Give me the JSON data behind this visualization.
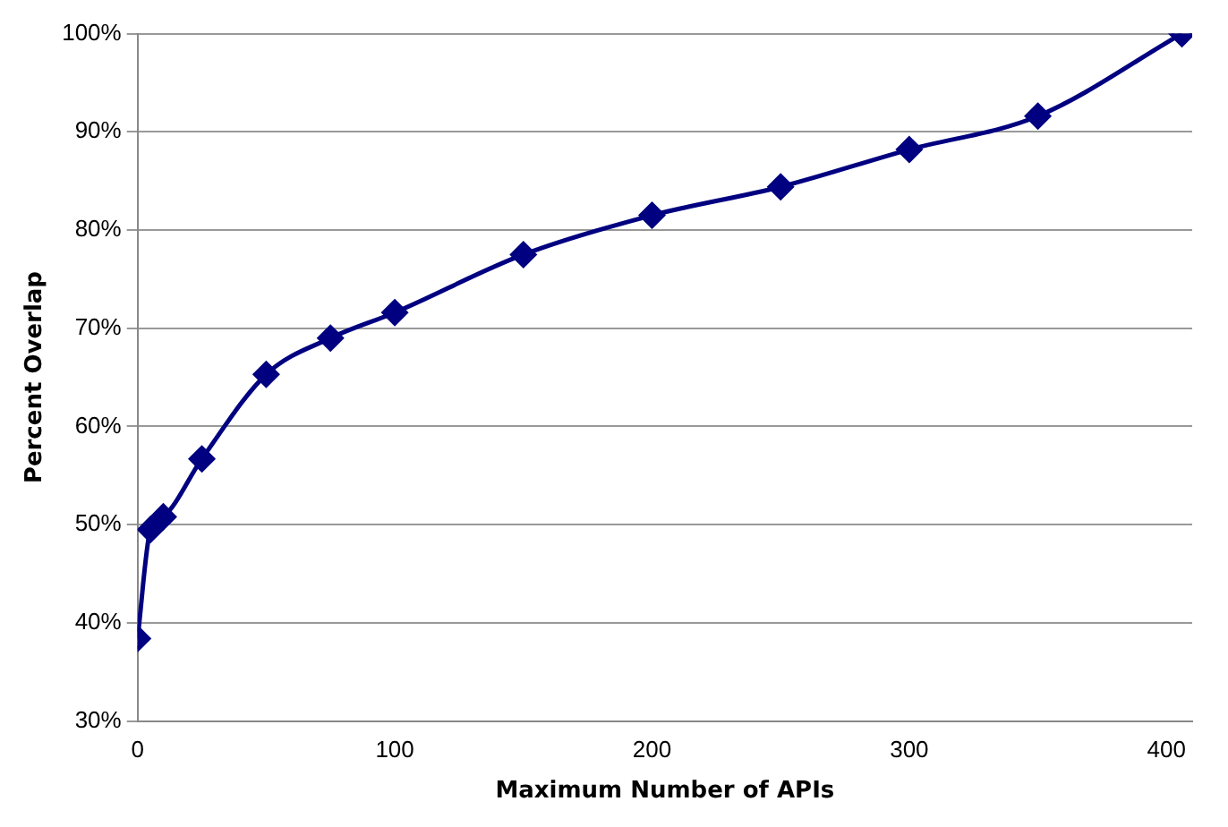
{
  "chart_data": {
    "type": "line",
    "xlabel": "Maximum Number of APIs",
    "ylabel": "Percent Overlap",
    "x": [
      0,
      5,
      10,
      25,
      50,
      75,
      100,
      150,
      200,
      250,
      300,
      350,
      406
    ],
    "series": [
      {
        "color": "#000080",
        "values": [
          38.4,
          49.5,
          50.8,
          56.7,
          65.3,
          69.0,
          71.6,
          77.5,
          81.5,
          84.4,
          88.2,
          91.6,
          100
        ]
      }
    ],
    "xlim": [
      0,
      410
    ],
    "xticks": [
      0,
      100,
      200,
      300,
      400
    ],
    "ylim": [
      30,
      100
    ],
    "yticks": [
      {
        "value": 30,
        "label": "30%"
      },
      {
        "value": 40,
        "label": "40%"
      },
      {
        "value": 50,
        "label": "50%"
      },
      {
        "value": 60,
        "label": "60%"
      },
      {
        "value": 70,
        "label": "70%"
      },
      {
        "value": 80,
        "label": "80%"
      },
      {
        "value": 90,
        "label": "90%"
      },
      {
        "value": 100,
        "label": "100%"
      }
    ],
    "grid": "y",
    "legend": false,
    "marker": "diamond",
    "line_style": "solid"
  }
}
